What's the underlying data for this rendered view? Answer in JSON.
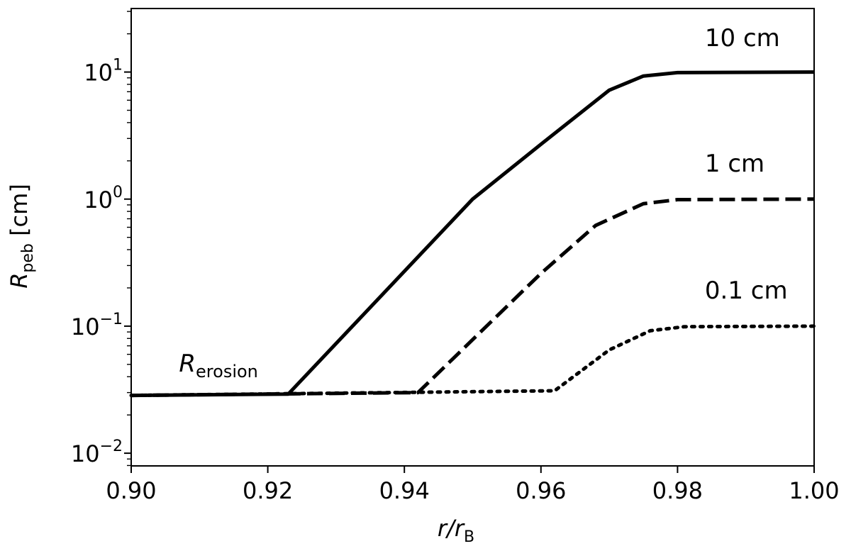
{
  "chart_data": {
    "type": "line",
    "xlabel": {
      "main": "r/r",
      "sub": "B"
    },
    "ylabel": {
      "main": "R",
      "sub": "peb",
      "unit": " [cm]"
    },
    "xlim": [
      0.9,
      1.0
    ],
    "ylim_log10": [
      -2.1,
      1.5
    ],
    "y_scale": "log",
    "x_ticks": [
      0.9,
      0.92,
      0.94,
      0.96,
      0.98,
      1.0
    ],
    "x_tick_labels": [
      "0.90",
      "0.92",
      "0.94",
      "0.96",
      "0.98",
      "1.00"
    ],
    "y_ticks": [
      {
        "value": 0.01,
        "base": "10",
        "exp": "−2"
      },
      {
        "value": 0.1,
        "base": "10",
        "exp": "−1"
      },
      {
        "value": 1,
        "base": "10",
        "exp": "0"
      },
      {
        "value": 10,
        "base": "10",
        "exp": "1"
      }
    ],
    "grid": false,
    "series": [
      {
        "name": "10 cm",
        "style": "solid",
        "points": [
          [
            0.9,
            0.0285
          ],
          [
            0.923,
            0.0292
          ],
          [
            0.95,
            1.0
          ],
          [
            0.96,
            2.7
          ],
          [
            0.97,
            7.2
          ],
          [
            0.975,
            9.3
          ],
          [
            0.98,
            9.9
          ],
          [
            1.0,
            10.0
          ]
        ]
      },
      {
        "name": "1 cm",
        "style": "dashed",
        "points": [
          [
            0.9,
            0.0285
          ],
          [
            0.942,
            0.03
          ],
          [
            0.96,
            0.26
          ],
          [
            0.968,
            0.62
          ],
          [
            0.975,
            0.92
          ],
          [
            0.98,
            0.99
          ],
          [
            1.0,
            1.0
          ]
        ]
      },
      {
        "name": "0.1 cm",
        "style": "dotted",
        "points": [
          [
            0.9,
            0.0285
          ],
          [
            0.962,
            0.031
          ],
          [
            0.97,
            0.065
          ],
          [
            0.976,
            0.092
          ],
          [
            0.981,
            0.099
          ],
          [
            1.0,
            0.1
          ]
        ]
      }
    ],
    "annotations": [
      {
        "text": "10 cm",
        "x": 0.984,
        "y": 16.0
      },
      {
        "text": "1 cm",
        "x": 0.984,
        "y": 1.65
      },
      {
        "text": "0.1 cm",
        "x": 0.984,
        "y": 0.165
      },
      {
        "text": "R",
        "sub": "erosion",
        "x": 0.907,
        "y": 0.044
      }
    ]
  }
}
